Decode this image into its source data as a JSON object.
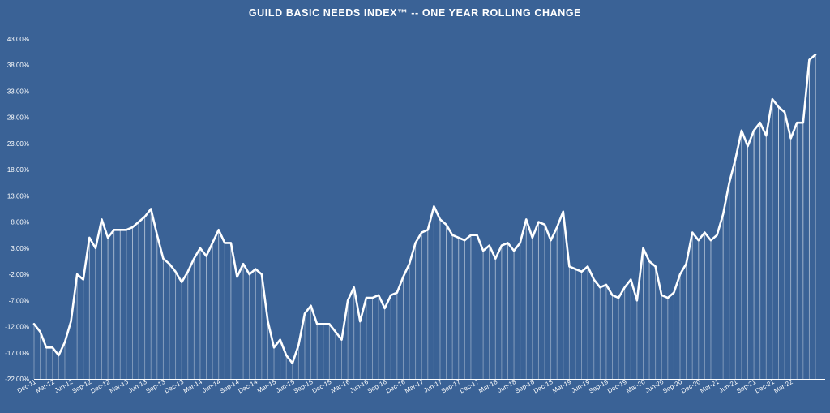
{
  "chart_data": {
    "type": "area",
    "title": "GUILD BASIC NEEDS INDEX™ -- ONE YEAR ROLLING CHANGE",
    "xlabel": "",
    "ylabel": "",
    "ylim": [
      -22,
      43
    ],
    "y_ticks": [
      "43.00%",
      "38.00%",
      "33.00%",
      "28.00%",
      "23.00%",
      "18.00%",
      "13.00%",
      "8.00%",
      "3.00%",
      "-2.00%",
      "-7.00%",
      "-12.00%",
      "-17.00%",
      "-22.00%"
    ],
    "y_tick_values": [
      43,
      38,
      33,
      28,
      23,
      18,
      13,
      8,
      3,
      -2,
      -7,
      -12,
      -17,
      -22
    ],
    "x_tick_labels": [
      "Dec-11",
      "Mar-12",
      "Jun-12",
      "Sep-12",
      "Dec-12",
      "Mar-13",
      "Jun-13",
      "Sep-13",
      "Dec-13",
      "Mar-14",
      "Jun-14",
      "Sep-14",
      "Dec-14",
      "Mar-15",
      "Jun-15",
      "Sep-15",
      "Dec-15",
      "Mar-16",
      "Jun-16",
      "Sep-16",
      "Dec-16",
      "Mar-17",
      "Jun-17",
      "Sep-17",
      "Dec-17",
      "Mar-18",
      "Jun-18",
      "Sep-18",
      "Dec-18",
      "Mar-19",
      "Jun-19",
      "Sep-19",
      "Dec-19",
      "Mar-20",
      "Jun-20",
      "Sep-20",
      "Dec-20",
      "Mar-21",
      "Jun-21",
      "Sep-21",
      "Dec-21",
      "Mar-22"
    ],
    "x_tick_index": [
      0,
      3,
      6,
      9,
      12,
      15,
      18,
      21,
      24,
      27,
      30,
      33,
      36,
      39,
      42,
      45,
      48,
      51,
      54,
      57,
      60,
      63,
      66,
      69,
      72,
      75,
      78,
      81,
      84,
      87,
      90,
      93,
      96,
      99,
      102,
      105,
      108,
      111,
      114,
      117,
      120,
      123
    ],
    "grid": false,
    "legend": "none",
    "series": [
      {
        "values": [
          -11.5,
          -13,
          -16,
          -16,
          -17.5,
          -15,
          -11,
          -2,
          -3,
          5,
          3,
          8.5,
          5,
          6.5,
          6.5,
          6.5,
          7,
          8,
          9,
          10.5,
          5.5,
          1,
          0,
          -1.5,
          -3.5,
          -1.5,
          1,
          3,
          1.5,
          4,
          6.5,
          4,
          4,
          -2.5,
          0,
          -2,
          -1,
          -2,
          -11,
          -16,
          -14.5,
          -17.5,
          -19,
          -15.5,
          -9.5,
          -8,
          -11.5,
          -11.5,
          -11.5,
          -13,
          -14.5,
          -7,
          -4.5,
          -11,
          -6.5,
          -6.5,
          -6,
          -8.5,
          -6,
          -5.5,
          -2.5,
          0,
          4,
          6,
          6.5,
          11,
          8.5,
          7.5,
          5.5,
          5,
          4.5,
          5.5,
          5.5,
          2.5,
          3.5,
          1,
          3.5,
          4,
          2.5,
          4,
          8.5,
          5,
          8,
          7.5,
          4.5,
          7,
          10,
          -0.5,
          -1,
          -1.5,
          -0.5,
          -3,
          -4.5,
          -4,
          -6,
          -6.5,
          -4.5,
          -3,
          -7,
          3,
          0.5,
          -0.5,
          -6,
          -6.5,
          -5.5,
          -2,
          0,
          6,
          4.5,
          6,
          4.5,
          5.5,
          9.5,
          15.5,
          20,
          25.5,
          22.5,
          25.5,
          27,
          24.5,
          31.5,
          30,
          29,
          24,
          27,
          27,
          39,
          40
        ]
      }
    ]
  }
}
